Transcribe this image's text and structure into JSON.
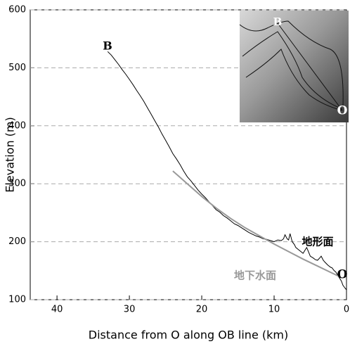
{
  "chart_data": {
    "type": "line",
    "x_label": "Distance from O along OB line (km)",
    "y_label": "Elevation (m)",
    "xlim": [
      43.7,
      0
    ],
    "xticks": [
      40,
      30,
      20,
      10,
      0
    ],
    "ylim": [
      100,
      600
    ],
    "yticks": [
      100,
      200,
      300,
      400,
      500,
      600
    ],
    "grid": true,
    "point_labels": [
      "B",
      "O"
    ],
    "series": [
      {
        "name": "地形面",
        "color": "#000000",
        "x": [
          33,
          32.5,
          32,
          31.5,
          31,
          30.5,
          30,
          29.5,
          29,
          28.5,
          28,
          27.5,
          27,
          26.5,
          26,
          25.5,
          25,
          24.5,
          24,
          23.5,
          23,
          22.5,
          22,
          21.5,
          21,
          20.5,
          20,
          19.5,
          19,
          18.5,
          18,
          17.5,
          17,
          16.5,
          16,
          15.5,
          15,
          14.5,
          14,
          13.5,
          13,
          12.5,
          12,
          11.5,
          11,
          10.5,
          10,
          9.5,
          9,
          8.7,
          8.5,
          8.2,
          8,
          7.8,
          7.5,
          7.2,
          7,
          6.6,
          6.3,
          6,
          5.7,
          5.5,
          5.2,
          5,
          4.6,
          4.3,
          4,
          3.7,
          3.5,
          3.2,
          3,
          2.6,
          2.2,
          2,
          1.7,
          1.5,
          1.2,
          1,
          0.7,
          0.5,
          0.2,
          0
        ],
        "values": [
          528,
          522,
          514,
          506,
          497,
          489,
          480,
          471,
          461,
          452,
          442,
          431,
          420,
          409,
          398,
          386,
          375,
          364,
          352,
          343,
          333,
          322,
          312,
          305,
          297,
          289,
          282,
          276,
          269,
          262,
          255,
          251,
          245,
          241,
          236,
          231,
          228,
          224,
          220,
          216,
          213,
          210,
          208,
          205,
          204,
          202,
          200,
          203,
          202,
          205,
          212,
          205,
          203,
          214,
          200,
          195,
          190,
          186,
          183,
          180,
          186,
          190,
          181,
          175,
          172,
          169,
          168,
          172,
          175,
          168,
          165,
          160,
          156,
          155,
          150,
          148,
          142,
          138,
          132,
          125,
          120,
          117
        ]
      },
      {
        "name": "地下水面",
        "color": "#999999",
        "x": [
          24,
          22,
          20,
          18,
          16,
          14,
          12,
          10,
          8,
          6,
          4,
          2,
          1
        ],
        "values": [
          322,
          300,
          278,
          258,
          240,
          224,
          210,
          196,
          183,
          170,
          158,
          146,
          140
        ]
      }
    ]
  }
}
